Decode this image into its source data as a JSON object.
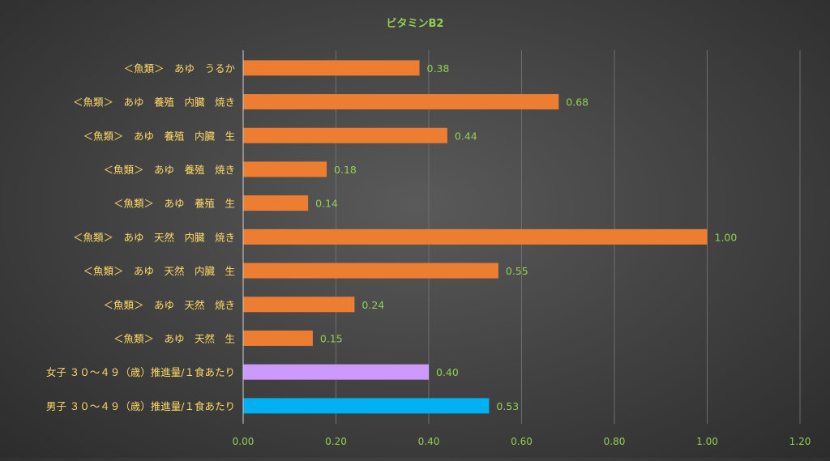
{
  "chart_data": {
    "type": "bar",
    "orientation": "horizontal",
    "title": "ビタミンB2",
    "xlabel": "",
    "ylabel": "",
    "xlim": [
      0,
      1.2
    ],
    "ticks": [
      "0.00",
      "0.20",
      "0.40",
      "0.60",
      "0.80",
      "1.00",
      "1.20"
    ],
    "grid": "vertical",
    "legend": "none",
    "categories": [
      "＜魚類＞　あゆ　うるか",
      "＜魚類＞　あゆ　養殖　内臓　焼き",
      "＜魚類＞　あゆ　養殖　内臓　生",
      "＜魚類＞　あゆ　養殖　焼き",
      "＜魚類＞　あゆ　養殖　生",
      "＜魚類＞　あゆ　天然　内臓　焼き",
      "＜魚類＞　あゆ　天然　内臓　生",
      "＜魚類＞　あゆ　天然　焼き",
      "＜魚類＞　あゆ　天然　生",
      "女子 ３０～４９（歳）推進量/１食あたり",
      "男子 ３０～４９（歳）推進量/１食あたり"
    ],
    "values": [
      0.38,
      0.68,
      0.44,
      0.18,
      0.14,
      1.0,
      0.55,
      0.24,
      0.15,
      0.4,
      0.53
    ],
    "value_labels": [
      "0.38",
      "0.68",
      "0.44",
      "0.18",
      "0.14",
      "1.00",
      "0.55",
      "0.24",
      "0.15",
      "0.40",
      "0.53"
    ],
    "bar_colors": [
      "#ed7d31",
      "#ed7d31",
      "#ed7d31",
      "#ed7d31",
      "#ed7d31",
      "#ed7d31",
      "#ed7d31",
      "#ed7d31",
      "#ed7d31",
      "#cc99ff",
      "#00b0f0"
    ],
    "colors": {
      "title": "#92d050",
      "category_label": "#ffd966",
      "tick_label": "#92d050",
      "value_label": "#92d050",
      "grid": "#6e6e6e",
      "axis": "#d0d0d0"
    }
  }
}
